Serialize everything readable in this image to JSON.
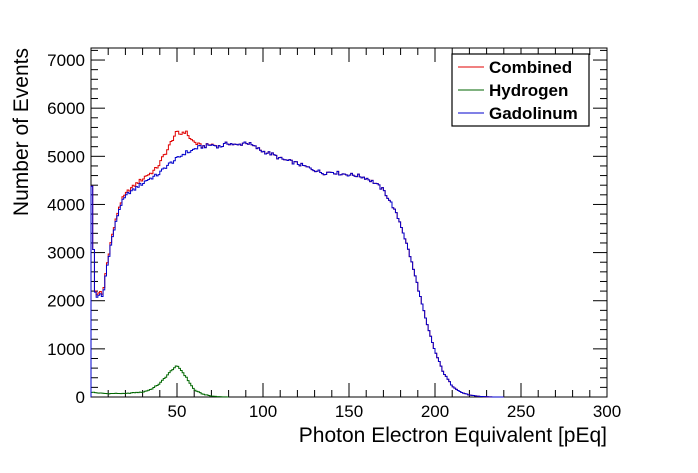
{
  "chart_data": {
    "type": "line",
    "style": "step-histogram",
    "title": "",
    "xlabel": "Photon Electron Equivalent [pEq]",
    "ylabel": "Number of Events",
    "xlim": [
      0,
      300
    ],
    "ylim": [
      0,
      7250
    ],
    "x_ticks": [
      50,
      100,
      150,
      200,
      250,
      300
    ],
    "y_ticks": [
      0,
      1000,
      2000,
      3000,
      4000,
      5000,
      6000,
      7000
    ],
    "bin_width": 1,
    "grid": false,
    "legend": {
      "position": "top-right",
      "entries": [
        "Combined",
        "Hydrogen",
        "Gadolinum"
      ]
    },
    "series": [
      {
        "name": "Combined",
        "color": "#e00000",
        "points": [
          [
            0.5,
            4400
          ],
          [
            1,
            3800
          ],
          [
            2,
            2300
          ],
          [
            3,
            2100
          ],
          [
            5,
            2200
          ],
          [
            7,
            2100
          ],
          [
            8,
            2450
          ],
          [
            10,
            2900
          ],
          [
            12,
            3300
          ],
          [
            14,
            3600
          ],
          [
            16,
            3900
          ],
          [
            18,
            4100
          ],
          [
            20,
            4200
          ],
          [
            22,
            4300
          ],
          [
            25,
            4380
          ],
          [
            28,
            4480
          ],
          [
            30,
            4520
          ],
          [
            32,
            4600
          ],
          [
            35,
            4650
          ],
          [
            38,
            4750
          ],
          [
            40,
            4850
          ],
          [
            42,
            5000
          ],
          [
            44,
            5100
          ],
          [
            46,
            5250
          ],
          [
            48,
            5400
          ],
          [
            50,
            5500
          ],
          [
            52,
            5450
          ],
          [
            54,
            5520
          ],
          [
            56,
            5480
          ],
          [
            58,
            5350
          ],
          [
            60,
            5300
          ],
          [
            62,
            5250
          ],
          [
            65,
            5200
          ],
          [
            70,
            5250
          ],
          [
            75,
            5200
          ],
          [
            80,
            5280
          ],
          [
            85,
            5220
          ],
          [
            90,
            5300
          ],
          [
            95,
            5200
          ],
          [
            100,
            5100
          ],
          [
            105,
            5050
          ],
          [
            110,
            4950
          ],
          [
            115,
            4900
          ],
          [
            120,
            4850
          ],
          [
            125,
            4780
          ],
          [
            130,
            4720
          ],
          [
            135,
            4650
          ],
          [
            140,
            4680
          ],
          [
            145,
            4640
          ],
          [
            150,
            4620
          ],
          [
            155,
            4600
          ],
          [
            160,
            4550
          ],
          [
            165,
            4450
          ],
          [
            170,
            4300
          ],
          [
            175,
            4000
          ],
          [
            180,
            3600
          ],
          [
            185,
            3000
          ],
          [
            190,
            2300
          ],
          [
            195,
            1550
          ],
          [
            200,
            950
          ],
          [
            205,
            500
          ],
          [
            210,
            230
          ],
          [
            215,
            100
          ],
          [
            220,
            40
          ],
          [
            225,
            15
          ],
          [
            230,
            5
          ],
          [
            235,
            0
          ],
          [
            240,
            0
          ]
        ]
      },
      {
        "name": "Hydrogen",
        "color": "#006600",
        "points": [
          [
            0.5,
            100
          ],
          [
            5,
            80
          ],
          [
            10,
            70
          ],
          [
            15,
            75
          ],
          [
            20,
            70
          ],
          [
            25,
            90
          ],
          [
            30,
            100
          ],
          [
            35,
            160
          ],
          [
            40,
            280
          ],
          [
            45,
            480
          ],
          [
            48,
            600
          ],
          [
            50,
            640
          ],
          [
            52,
            580
          ],
          [
            55,
            430
          ],
          [
            58,
            260
          ],
          [
            60,
            150
          ],
          [
            65,
            60
          ],
          [
            70,
            20
          ],
          [
            75,
            5
          ],
          [
            80,
            0
          ]
        ]
      },
      {
        "name": "Gadolinum",
        "color": "#0000cc",
        "points": [
          [
            0.5,
            4400
          ],
          [
            1,
            3800
          ],
          [
            2,
            2300
          ],
          [
            3,
            2050
          ],
          [
            5,
            2150
          ],
          [
            7,
            2050
          ],
          [
            8,
            2400
          ],
          [
            10,
            2850
          ],
          [
            12,
            3250
          ],
          [
            14,
            3550
          ],
          [
            16,
            3850
          ],
          [
            18,
            4050
          ],
          [
            20,
            4150
          ],
          [
            22,
            4250
          ],
          [
            25,
            4300
          ],
          [
            28,
            4400
          ],
          [
            30,
            4430
          ],
          [
            32,
            4500
          ],
          [
            35,
            4550
          ],
          [
            38,
            4600
          ],
          [
            40,
            4650
          ],
          [
            42,
            4730
          ],
          [
            44,
            4800
          ],
          [
            46,
            4850
          ],
          [
            48,
            4900
          ],
          [
            50,
            4950
          ],
          [
            52,
            5000
          ],
          [
            55,
            5080
          ],
          [
            58,
            5100
          ],
          [
            60,
            5150
          ],
          [
            62,
            5180
          ],
          [
            65,
            5200
          ],
          [
            70,
            5240
          ],
          [
            75,
            5200
          ],
          [
            80,
            5280
          ],
          [
            85,
            5220
          ],
          [
            90,
            5300
          ],
          [
            95,
            5200
          ],
          [
            100,
            5100
          ],
          [
            105,
            5050
          ],
          [
            110,
            4950
          ],
          [
            115,
            4900
          ],
          [
            120,
            4850
          ],
          [
            125,
            4780
          ],
          [
            130,
            4720
          ],
          [
            135,
            4650
          ],
          [
            140,
            4680
          ],
          [
            145,
            4640
          ],
          [
            150,
            4620
          ],
          [
            155,
            4600
          ],
          [
            160,
            4550
          ],
          [
            165,
            4450
          ],
          [
            170,
            4300
          ],
          [
            175,
            4000
          ],
          [
            180,
            3600
          ],
          [
            185,
            3000
          ],
          [
            190,
            2300
          ],
          [
            195,
            1550
          ],
          [
            200,
            950
          ],
          [
            205,
            500
          ],
          [
            210,
            230
          ],
          [
            215,
            100
          ],
          [
            220,
            40
          ],
          [
            225,
            15
          ],
          [
            230,
            5
          ],
          [
            235,
            0
          ],
          [
            240,
            0
          ]
        ]
      }
    ]
  }
}
